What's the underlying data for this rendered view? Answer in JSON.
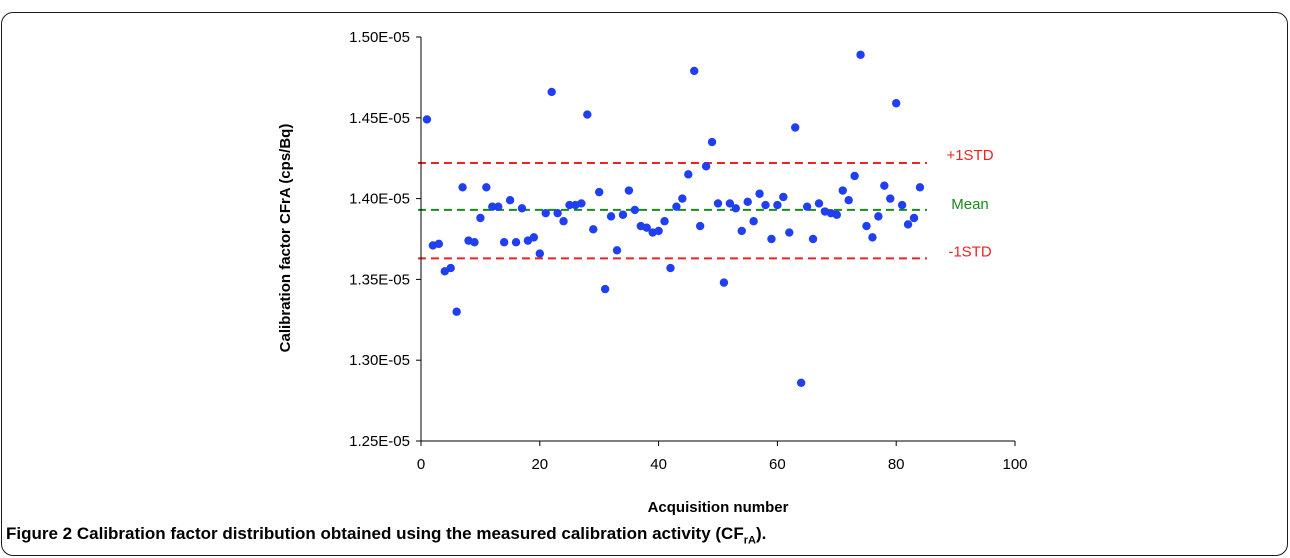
{
  "caption": {
    "label": "Figure 2",
    "text": "Calibration factor distribution obtained using the measured calibration activity (CF",
    "sub": "rA",
    "end": ")."
  },
  "chart_data": {
    "type": "scatter",
    "xlabel": "Acquisition number",
    "ylabel": "Calibration factor CFrA (cps/Bq)",
    "xlim": [
      0,
      100
    ],
    "ylim": [
      1.25e-05,
      1.5e-05
    ],
    "xticks": [
      "0",
      "20",
      "40",
      "60",
      "80",
      "100"
    ],
    "yticks": [
      "1.25E-05",
      "1.30E-05",
      "1.35E-05",
      "1.40E-05",
      "1.45E-05",
      "1.50E-05"
    ],
    "grid": false,
    "marker_color": "#1f3ff0",
    "x": [
      1,
      2,
      3,
      4,
      5,
      6,
      7,
      8,
      9,
      10,
      11,
      12,
      13,
      14,
      15,
      16,
      17,
      18,
      19,
      20,
      21,
      22,
      23,
      24,
      25,
      26,
      27,
      28,
      29,
      30,
      31,
      32,
      33,
      34,
      35,
      36,
      37,
      38,
      39,
      40,
      41,
      42,
      43,
      44,
      45,
      46,
      47,
      48,
      49,
      50,
      51,
      52,
      53,
      54,
      55,
      56,
      57,
      58,
      59,
      60,
      61,
      62,
      63,
      64,
      65,
      66,
      67,
      68,
      69,
      70,
      71,
      72,
      73,
      74,
      75,
      76,
      77,
      78,
      79,
      80,
      81,
      82,
      83,
      84
    ],
    "y": [
      1.449e-05,
      1.371e-05,
      1.372e-05,
      1.355e-05,
      1.357e-05,
      1.33e-05,
      1.407e-05,
      1.374e-05,
      1.373e-05,
      1.388e-05,
      1.407e-05,
      1.395e-05,
      1.395e-05,
      1.373e-05,
      1.399e-05,
      1.373e-05,
      1.394e-05,
      1.374e-05,
      1.376e-05,
      1.366e-05,
      1.391e-05,
      1.466e-05,
      1.391e-05,
      1.386e-05,
      1.396e-05,
      1.396e-05,
      1.397e-05,
      1.452e-05,
      1.381e-05,
      1.404e-05,
      1.344e-05,
      1.389e-05,
      1.368e-05,
      1.39e-05,
      1.405e-05,
      1.393e-05,
      1.383e-05,
      1.382e-05,
      1.379e-05,
      1.38e-05,
      1.386e-05,
      1.357e-05,
      1.395e-05,
      1.4e-05,
      1.415e-05,
      1.479e-05,
      1.383e-05,
      1.42e-05,
      1.435e-05,
      1.397e-05,
      1.348e-05,
      1.397e-05,
      1.394e-05,
      1.38e-05,
      1.398e-05,
      1.386e-05,
      1.403e-05,
      1.396e-05,
      1.375e-05,
      1.396e-05,
      1.401e-05,
      1.379e-05,
      1.444e-05,
      1.286e-05,
      1.395e-05,
      1.375e-05,
      1.397e-05,
      1.392e-05,
      1.391e-05,
      1.39e-05,
      1.405e-05,
      1.399e-05,
      1.414e-05,
      1.489e-05,
      1.383e-05,
      1.376e-05,
      1.389e-05,
      1.408e-05,
      1.4e-05,
      1.459e-05,
      1.396e-05,
      1.384e-05,
      1.388e-05,
      1.407e-05
    ],
    "reference_lines": [
      {
        "name": "+1STD",
        "value": 1.422e-05,
        "color": "#ee2222",
        "x_range": [
          1,
          84
        ]
      },
      {
        "name": "Mean",
        "value": 1.393e-05,
        "color": "#1a8a1a",
        "x_range": [
          1,
          84
        ]
      },
      {
        "name": "-1STD",
        "value": 1.363e-05,
        "color": "#ee2222",
        "x_range": [
          1,
          84
        ]
      }
    ]
  }
}
